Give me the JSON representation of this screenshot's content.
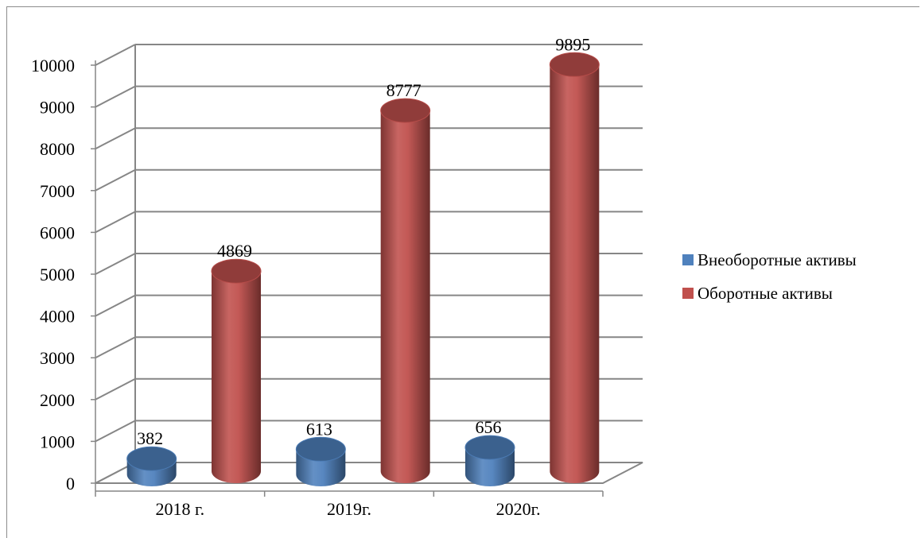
{
  "chart_data": {
    "type": "bar",
    "categories": [
      "2018 г.",
      "2019г.",
      "2020г."
    ],
    "series": [
      {
        "name": "Внеоборотные активы",
        "values": [
          382,
          613,
          656
        ],
        "color": "#4f81bd"
      },
      {
        "name": "Оборотные активы",
        "values": [
          4869,
          8777,
          9895
        ],
        "color": "#c0504d"
      }
    ],
    "yticks": [
      "0",
      "1000",
      "2000",
      "3000",
      "4000",
      "5000",
      "6000",
      "7000",
      "8000",
      "9000",
      "10000"
    ],
    "ylim": [
      0,
      10000
    ],
    "grid": true,
    "legend": "right",
    "style": "3d-cylinder"
  }
}
